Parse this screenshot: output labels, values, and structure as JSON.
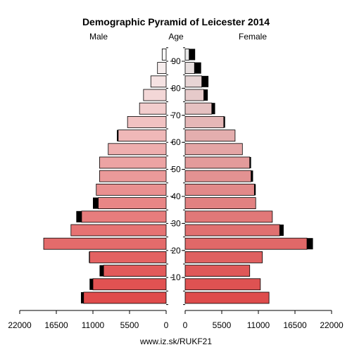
{
  "chart_data": {
    "type": "bar",
    "title": "Demographic Pyramid of Leicester 2014",
    "left_label": "Male",
    "center_label": "Age",
    "right_label": "Female",
    "footer": "www.iz.sk/RUKF21",
    "age_groups": [
      "0-4",
      "5-9",
      "10-14",
      "15-19",
      "20-24",
      "25-29",
      "30-34",
      "35-39",
      "40-44",
      "45-49",
      "50-54",
      "55-59",
      "60-64",
      "65-69",
      "70-74",
      "75-79",
      "80-84",
      "85-89",
      "90+"
    ],
    "age_tick_labels": [
      "10",
      "20",
      "30",
      "40",
      "50",
      "60",
      "70",
      "80",
      "90"
    ],
    "x_ticks_left": [
      "22000",
      "16500",
      "11000",
      "5500",
      "0"
    ],
    "x_ticks_right": [
      "0",
      "5500",
      "11000",
      "16500",
      "22000"
    ],
    "xlim": [
      0,
      22000
    ],
    "series": [
      {
        "name": "Male",
        "total": [
          12800,
          11500,
          10000,
          11600,
          18400,
          14300,
          13500,
          11000,
          10500,
          10000,
          10000,
          8700,
          7400,
          5800,
          4000,
          3400,
          2300,
          1300,
          600
        ],
        "dark": [
          12400,
          11000,
          9400,
          11500,
          18400,
          14300,
          12700,
          10200,
          10500,
          10000,
          10000,
          8700,
          7200,
          5800,
          4000,
          3400,
          2300,
          1300,
          600
        ]
      },
      {
        "name": "Female",
        "total": [
          12600,
          11300,
          9700,
          11600,
          19200,
          14800,
          13100,
          10600,
          10600,
          10200,
          9900,
          8600,
          7500,
          6000,
          4500,
          3400,
          3500,
          2400,
          1500
        ],
        "dark": [
          12600,
          11300,
          9700,
          11600,
          18300,
          14200,
          13100,
          10600,
          10400,
          9900,
          9700,
          8600,
          7500,
          5800,
          4000,
          2800,
          2500,
          1400,
          600
        ]
      }
    ]
  }
}
